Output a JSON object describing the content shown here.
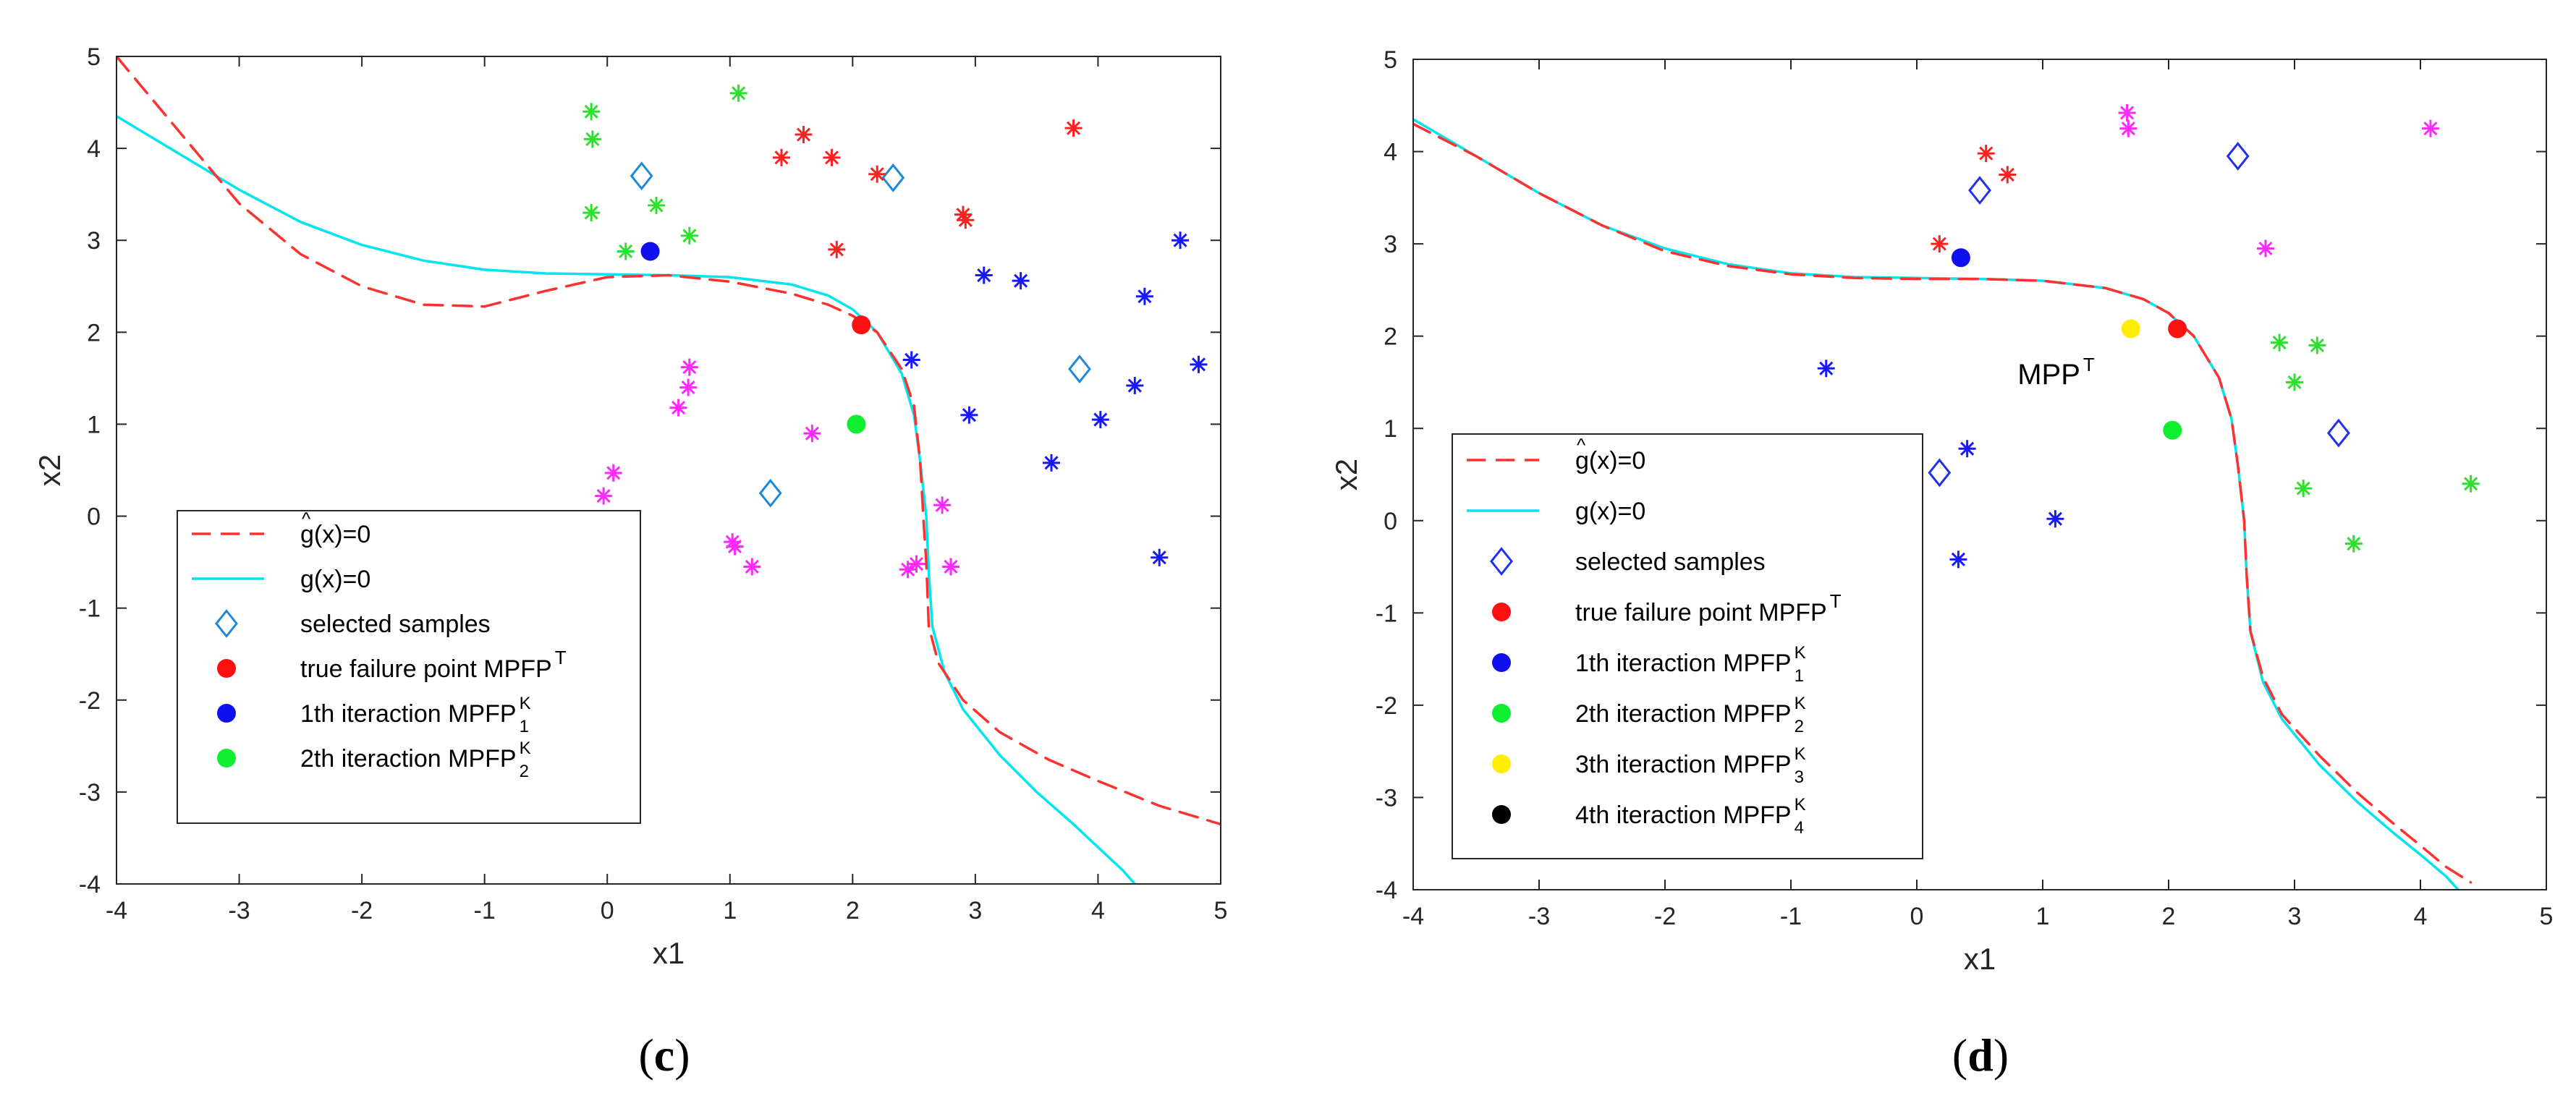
{
  "chart_data": [
    {
      "panel_label": "c",
      "type": "scatter",
      "xlabel": "x1",
      "ylabel": "x2",
      "xlim": [
        -4,
        5
      ],
      "ylim": [
        -4,
        5
      ],
      "xticks": [
        -4,
        -3,
        -2,
        -1,
        0,
        1,
        2,
        3,
        4,
        5
      ],
      "yticks": [
        -4,
        -3,
        -2,
        -1,
        0,
        1,
        2,
        3,
        4,
        5
      ],
      "legend_position": "bottom-left",
      "curves": [
        {
          "name": "g^(x)=0",
          "style": "dashed",
          "color": "#ff3030",
          "x": [
            -4,
            -3.5,
            -3,
            -2.5,
            -2,
            -1.5,
            -1,
            -0.5,
            0,
            0.5,
            1,
            1.5,
            1.8,
            2.0,
            2.2,
            2.4,
            2.5,
            2.55,
            2.58,
            2.6,
            2.62,
            2.7,
            2.9,
            3.2,
            3.6,
            4.0,
            4.5,
            5.0
          ],
          "y": [
            5.0,
            4.2,
            3.4,
            2.85,
            2.5,
            2.3,
            2.28,
            2.45,
            2.6,
            2.62,
            2.55,
            2.42,
            2.3,
            2.18,
            2.0,
            1.6,
            1.2,
            0.6,
            -0.1,
            -0.5,
            -1.2,
            -1.6,
            -2.0,
            -2.35,
            -2.65,
            -2.88,
            -3.15,
            -3.35
          ]
        },
        {
          "name": "g(x)=0",
          "style": "solid",
          "color": "#00e5ee",
          "x": [
            -4,
            -3.5,
            -3,
            -2.5,
            -2,
            -1.5,
            -1,
            -0.5,
            0,
            0.5,
            1,
            1.5,
            1.8,
            2.0,
            2.2,
            2.4,
            2.5,
            2.55,
            2.6,
            2.62,
            2.65,
            2.75,
            2.9,
            3.2,
            3.5,
            3.8,
            4.0,
            4.2,
            4.3
          ],
          "y": [
            4.35,
            3.95,
            3.55,
            3.2,
            2.95,
            2.78,
            2.68,
            2.64,
            2.63,
            2.62,
            2.6,
            2.52,
            2.4,
            2.25,
            2.0,
            1.55,
            1.1,
            0.6,
            0.0,
            -0.6,
            -1.2,
            -1.7,
            -2.1,
            -2.6,
            -3.0,
            -3.35,
            -3.6,
            -3.85,
            -4.0
          ]
        }
      ],
      "scatter_groups": [
        {
          "name": "selected samples",
          "marker": "diamond",
          "color": "#1e88d8",
          "points": [
            [
              0.28,
              3.7
            ],
            [
              2.33,
              3.68
            ],
            [
              3.85,
              1.6
            ],
            [
              1.33,
              0.25
            ]
          ]
        },
        {
          "name": "red samples",
          "marker": "asterisk",
          "color": "#ff2020",
          "points": [
            [
              3.8,
              4.22
            ],
            [
              1.6,
              4.15
            ],
            [
              1.42,
              3.9
            ],
            [
              1.83,
              3.9
            ],
            [
              2.2,
              3.72
            ],
            [
              2.9,
              3.28
            ],
            [
              2.92,
              3.22
            ],
            [
              1.87,
              2.9
            ]
          ]
        },
        {
          "name": "green samples",
          "marker": "asterisk",
          "color": "#2ee02e",
          "points": [
            [
              1.07,
              4.6
            ],
            [
              -0.13,
              4.4
            ],
            [
              -0.12,
              4.1
            ],
            [
              0.4,
              3.38
            ],
            [
              -0.13,
              3.3
            ],
            [
              0.67,
              3.05
            ],
            [
              0.15,
              2.88
            ]
          ]
        },
        {
          "name": "blue samples",
          "marker": "asterisk",
          "color": "#1818ff",
          "points": [
            [
              4.67,
              3.0
            ],
            [
              3.07,
              2.62
            ],
            [
              3.37,
              2.56
            ],
            [
              4.38,
              2.39
            ],
            [
              2.48,
              1.7
            ],
            [
              4.82,
              1.65
            ],
            [
              4.3,
              1.42
            ],
            [
              2.95,
              1.1
            ],
            [
              4.02,
              1.05
            ],
            [
              3.62,
              0.58
            ],
            [
              4.5,
              -0.45
            ]
          ]
        },
        {
          "name": "magenta samples",
          "marker": "asterisk",
          "color": "#ff28ff",
          "points": [
            [
              0.67,
              1.62
            ],
            [
              0.66,
              1.4
            ],
            [
              0.58,
              1.18
            ],
            [
              1.67,
              0.9
            ],
            [
              0.05,
              0.47
            ],
            [
              -0.03,
              0.22
            ],
            [
              2.73,
              0.12
            ],
            [
              1.02,
              -0.28
            ],
            [
              1.04,
              -0.33
            ],
            [
              1.18,
              -0.55
            ],
            [
              2.52,
              -0.52
            ],
            [
              2.8,
              -0.55
            ],
            [
              2.45,
              -0.58
            ]
          ]
        },
        {
          "name": "true failure point MPFP^T",
          "marker": "dot",
          "color": "#ff1010",
          "points": [
            [
              2.07,
              2.08
            ]
          ]
        },
        {
          "name": "1th iteraction MPFP_1^K",
          "marker": "dot",
          "color": "#1010ee",
          "points": [
            [
              0.35,
              2.88
            ]
          ]
        },
        {
          "name": "2th iteraction MPFP_2^K",
          "marker": "dot",
          "color": "#10ee30",
          "points": [
            [
              2.03,
              1.0
            ]
          ]
        }
      ],
      "annotations": [],
      "legend": [
        {
          "key": "line-dashed",
          "color": "#ff3030",
          "text": "g(x)=0",
          "hat": "^",
          "sup": "",
          "sub": ""
        },
        {
          "key": "line-solid",
          "color": "#00e5ee",
          "text": "g(x)=0",
          "hat": "",
          "sup": "",
          "sub": ""
        },
        {
          "key": "diamond",
          "color": "#1e88d8",
          "text": "selected samples",
          "hat": "",
          "sup": "",
          "sub": ""
        },
        {
          "key": "dot",
          "color": "#ff1010",
          "text": "true failure point MPFP",
          "hat": "",
          "sup": "T",
          "sub": ""
        },
        {
          "key": "dot",
          "color": "#1010ee",
          "text": "1th iteraction MPFP",
          "hat": "",
          "sup": "K",
          "sub": "1"
        },
        {
          "key": "dot",
          "color": "#10ee30",
          "text": "2th iteraction MPFP",
          "hat": "",
          "sup": "K",
          "sub": "2"
        }
      ]
    },
    {
      "panel_label": "d",
      "type": "scatter",
      "xlabel": "x1",
      "ylabel": "x2",
      "xlim": [
        -4,
        5
      ],
      "ylim": [
        -4,
        5
      ],
      "xticks": [
        -4,
        -3,
        -2,
        -1,
        0,
        1,
        2,
        3,
        4,
        5
      ],
      "yticks": [
        -4,
        -3,
        -2,
        -1,
        0,
        1,
        2,
        3,
        4,
        5
      ],
      "legend_position": "bottom-left",
      "curves": [
        {
          "name": "g^(x)=0",
          "style": "dashed",
          "color": "#ff3030",
          "x": [
            -4,
            -3.5,
            -3,
            -2.5,
            -2,
            -1.5,
            -1,
            -0.5,
            0,
            0.5,
            1,
            1.5,
            1.8,
            2.0,
            2.2,
            2.4,
            2.5,
            2.55,
            2.6,
            2.62,
            2.65,
            2.75,
            2.9,
            3.2,
            3.5,
            3.8,
            4.0,
            4.2,
            4.4
          ],
          "y": [
            4.3,
            3.95,
            3.55,
            3.2,
            2.92,
            2.76,
            2.67,
            2.63,
            2.62,
            2.62,
            2.6,
            2.52,
            2.4,
            2.25,
            2.0,
            1.55,
            1.1,
            0.6,
            0.0,
            -0.6,
            -1.2,
            -1.7,
            -2.1,
            -2.55,
            -2.95,
            -3.3,
            -3.52,
            -3.75,
            -3.92
          ]
        },
        {
          "name": "g(x)=0",
          "style": "solid",
          "color": "#00e5ee",
          "x": [
            -4,
            -3.5,
            -3,
            -2.5,
            -2,
            -1.5,
            -1,
            -0.5,
            0,
            0.5,
            1,
            1.5,
            1.8,
            2.0,
            2.2,
            2.4,
            2.5,
            2.55,
            2.6,
            2.62,
            2.65,
            2.75,
            2.9,
            3.2,
            3.5,
            3.8,
            4.0,
            4.2,
            4.3
          ],
          "y": [
            4.35,
            3.95,
            3.55,
            3.2,
            2.95,
            2.78,
            2.68,
            2.64,
            2.63,
            2.62,
            2.6,
            2.52,
            2.4,
            2.25,
            2.0,
            1.55,
            1.1,
            0.6,
            0.0,
            -0.6,
            -1.2,
            -1.75,
            -2.15,
            -2.65,
            -3.05,
            -3.4,
            -3.62,
            -3.85,
            -4.0
          ]
        }
      ],
      "scatter_groups": [
        {
          "name": "selected samples",
          "marker": "diamond",
          "color": "#2030ee",
          "points": [
            [
              2.55,
              3.95
            ],
            [
              0.5,
              3.58
            ],
            [
              3.35,
              0.95
            ],
            [
              0.18,
              0.52
            ]
          ]
        },
        {
          "name": "red samples",
          "marker": "asterisk",
          "color": "#ff2020",
          "points": [
            [
              0.55,
              3.98
            ],
            [
              0.72,
              3.75
            ],
            [
              0.18,
              3.0
            ]
          ]
        },
        {
          "name": "magenta samples",
          "marker": "asterisk",
          "color": "#ff28ff",
          "points": [
            [
              1.67,
              4.42
            ],
            [
              1.68,
              4.25
            ],
            [
              4.08,
              4.25
            ],
            [
              2.77,
              2.95
            ]
          ]
        },
        {
          "name": "green samples",
          "marker": "asterisk",
          "color": "#2ee02e",
          "points": [
            [
              2.88,
              1.93
            ],
            [
              3.18,
              1.9
            ],
            [
              3.0,
              1.5
            ],
            [
              4.4,
              0.4
            ],
            [
              3.07,
              0.35
            ],
            [
              3.47,
              -0.25
            ]
          ]
        },
        {
          "name": "blue samples",
          "marker": "asterisk",
          "color": "#1818ff",
          "points": [
            [
              -0.72,
              1.65
            ],
            [
              0.4,
              0.78
            ],
            [
              1.1,
              0.02
            ],
            [
              0.33,
              -0.42
            ]
          ]
        },
        {
          "name": "true failure point MPFP^T",
          "marker": "dot",
          "color": "#ff1010",
          "points": [
            [
              2.07,
              2.08
            ]
          ]
        },
        {
          "name": "1th iteraction MPFP_1^K",
          "marker": "dot",
          "color": "#1010ee",
          "points": [
            [
              0.35,
              2.85
            ]
          ]
        },
        {
          "name": "2th iteraction MPFP_2^K",
          "marker": "dot",
          "color": "#10ee30",
          "points": [
            [
              2.03,
              0.98
            ]
          ]
        },
        {
          "name": "3th iteraction MPFP_3^K",
          "marker": "dot",
          "color": "#ffee00",
          "points": [
            [
              1.7,
              2.08
            ]
          ]
        }
      ],
      "annotations": [
        {
          "text": "MPP",
          "sup": "T",
          "x": 0.8,
          "y": 1.48
        }
      ],
      "legend": [
        {
          "key": "line-dashed",
          "color": "#ff3030",
          "text": "g(x)=0",
          "hat": "^",
          "sup": "",
          "sub": ""
        },
        {
          "key": "line-solid",
          "color": "#00e5ee",
          "text": "g(x)=0",
          "hat": "",
          "sup": "",
          "sub": ""
        },
        {
          "key": "diamond",
          "color": "#2030ee",
          "text": "selected samples",
          "hat": "",
          "sup": "",
          "sub": ""
        },
        {
          "key": "dot",
          "color": "#ff1010",
          "text": "true failure point MPFP",
          "hat": "",
          "sup": "T",
          "sub": ""
        },
        {
          "key": "dot",
          "color": "#1010ee",
          "text": "1th iteraction MPFP",
          "hat": "",
          "sup": "K",
          "sub": "1"
        },
        {
          "key": "dot",
          "color": "#10ee30",
          "text": "2th iteraction MPFP",
          "hat": "",
          "sup": "K",
          "sub": "2"
        },
        {
          "key": "dot",
          "color": "#ffee00",
          "text": "3th iteraction MPFP",
          "hat": "",
          "sup": "K",
          "sub": "3"
        },
        {
          "key": "dot",
          "color": "#000000",
          "text": "4th iteraction MPFP",
          "hat": "",
          "sup": "K",
          "sub": "4"
        }
      ]
    }
  ]
}
